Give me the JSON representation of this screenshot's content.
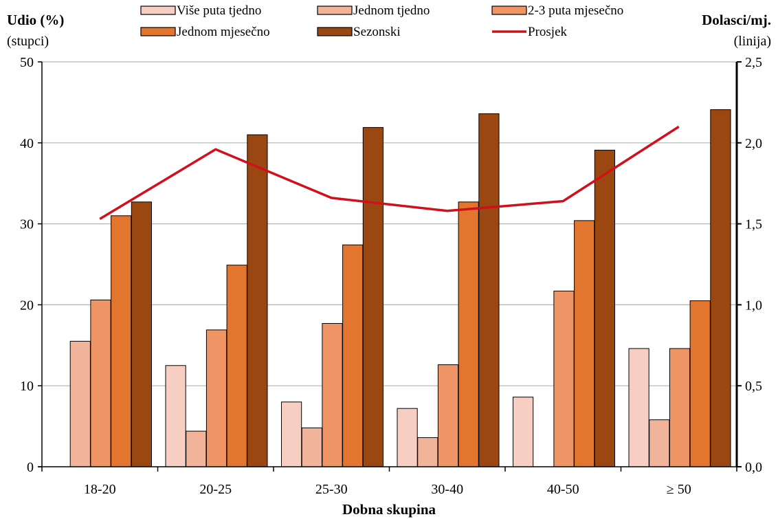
{
  "chart_data": {
    "type": "bar",
    "xlabel": "Dobna skupina",
    "ylabel_left": "Udio (%)",
    "ylabel_left_sub": "(stupci)",
    "ylabel_right": "Dolasci/mj.",
    "ylabel_right_sub": "(linija)",
    "categories": [
      "18-20",
      "20-25",
      "25-30",
      "30-40",
      "40-50",
      "≥ 50"
    ],
    "ylim_left": [
      0,
      50
    ],
    "yticks_left": [
      "0",
      "10",
      "20",
      "30",
      "40",
      "50"
    ],
    "ylim_right": [
      0,
      2.5
    ],
    "yticks_right": [
      "0,0",
      "0,5",
      "1,0",
      "1,5",
      "2,0",
      "2,5"
    ],
    "grid": true,
    "legend_position": "top",
    "series": [
      {
        "name": "Više puta tjedno",
        "color": "#f7cfc2",
        "values": [
          0,
          12.5,
          8.0,
          7.2,
          8.6,
          14.6
        ]
      },
      {
        "name": "Jednom tjedno",
        "color": "#f2b39b",
        "values": [
          15.5,
          4.4,
          4.8,
          3.6,
          0,
          5.8
        ]
      },
      {
        "name": "2-3 puta mjesečno",
        "color": "#ef9565",
        "values": [
          20.6,
          16.9,
          17.7,
          12.6,
          21.7,
          14.6
        ]
      },
      {
        "name": "Jednom mjesečno",
        "color": "#e2762e",
        "values": [
          31.0,
          24.9,
          27.4,
          32.7,
          30.4,
          20.5
        ]
      },
      {
        "name": "Sezonski",
        "color": "#9a4711",
        "values": [
          32.7,
          41.0,
          41.9,
          43.6,
          39.1,
          44.1
        ]
      }
    ],
    "line": {
      "name": "Prosjek",
      "color": "#d0101a",
      "axis": "right",
      "values": [
        1.53,
        1.96,
        1.66,
        1.58,
        1.64,
        2.1
      ]
    }
  }
}
